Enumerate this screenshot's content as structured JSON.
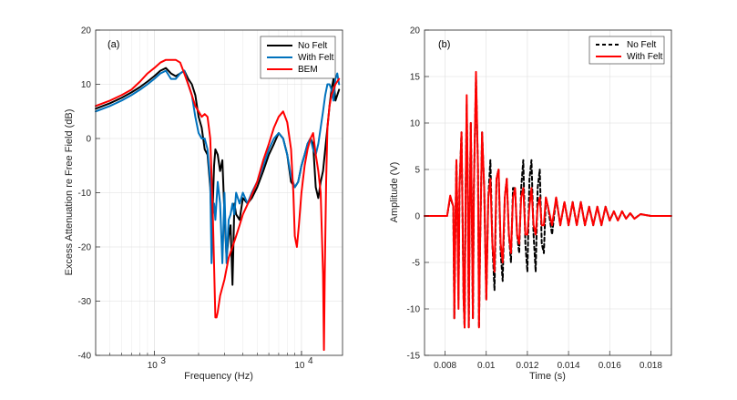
{
  "chart_data": [
    {
      "type": "line",
      "panel_label": "(a)",
      "xscale": "log",
      "xlabel": "Frequency (Hz)",
      "ylabel": "Excess Attenuation re Free Field (dB)",
      "xlim": [
        400,
        19000
      ],
      "ylim": [
        -40,
        20
      ],
      "grid": true,
      "legend_position": "top-right",
      "xticks": [
        {
          "value": 1000,
          "base": "10",
          "exp": "3"
        },
        {
          "value": 10000,
          "base": "10",
          "exp": "4"
        }
      ],
      "yticks": [
        -40,
        -30,
        -20,
        -10,
        0,
        10,
        20
      ],
      "yticks_labels": [
        "-40",
        "-30",
        "-20",
        "-10",
        "0",
        "10",
        "20"
      ],
      "series": [
        {
          "name": "No Felt",
          "color": "#000000",
          "dash": "solid",
          "x": [
            400,
            500,
            600,
            700,
            800,
            900,
            1000,
            1100,
            1200,
            1300,
            1400,
            1500,
            1600,
            1700,
            1800,
            1900,
            2000,
            2100,
            2200,
            2300,
            2400,
            2450,
            2500,
            2550,
            2600,
            2700,
            2800,
            2900,
            3000,
            3100,
            3200,
            3300,
            3400,
            3500,
            3600,
            3800,
            4000,
            4300,
            4600,
            5000,
            5500,
            6000,
            6500,
            7000,
            7500,
            8000,
            8500,
            9000,
            9500,
            10000,
            10500,
            11000,
            11500,
            12000,
            12500,
            13000,
            13500,
            14000,
            14500,
            15000,
            15500,
            16000,
            16500,
            17000,
            17500,
            18000
          ],
          "y": [
            5.5,
            6.5,
            7.5,
            8.5,
            9.5,
            10.5,
            11.5,
            12.5,
            13,
            12,
            11.5,
            12,
            12.5,
            11,
            10,
            8,
            4,
            2,
            -2,
            -3,
            -9,
            -16,
            -12,
            -5,
            -2,
            -3,
            -6,
            -4,
            -14,
            -22,
            -18,
            -16,
            -27,
            -12,
            -14,
            -15,
            -11,
            -12,
            -11,
            -9,
            -6,
            -3,
            -1,
            1,
            0,
            -3,
            -8,
            -9,
            -8,
            -5,
            -3,
            -1,
            0,
            -1,
            -9,
            -11,
            -8,
            -6,
            -2,
            2,
            6,
            9,
            11,
            7,
            8,
            9
          ]
        },
        {
          "name": "With Felt",
          "color": "#0072bd",
          "dash": "solid",
          "x": [
            400,
            500,
            600,
            700,
            800,
            900,
            1000,
            1100,
            1200,
            1300,
            1400,
            1500,
            1600,
            1700,
            1800,
            1900,
            2000,
            2100,
            2200,
            2300,
            2400,
            2450,
            2500,
            2550,
            2600,
            2700,
            2800,
            2900,
            3000,
            3100,
            3200,
            3300,
            3400,
            3500,
            3600,
            3800,
            4000,
            4300,
            4600,
            5000,
            5500,
            6000,
            6500,
            7000,
            7500,
            8000,
            8500,
            9000,
            9500,
            10000,
            10500,
            11000,
            11500,
            12000,
            12500,
            13000,
            13500,
            14000,
            14500,
            15000,
            15500,
            16000,
            16500,
            17000,
            17500,
            18000
          ],
          "y": [
            5,
            6,
            7,
            8,
            9,
            10,
            11,
            12,
            12.5,
            11,
            11,
            12,
            12.5,
            10,
            8,
            4,
            1,
            0,
            0,
            -2,
            -8,
            -23,
            -14,
            -12,
            -15,
            -8,
            -12,
            -23,
            -10,
            -23,
            -15,
            -14,
            -12,
            -14,
            -10,
            -12,
            -10,
            -12,
            -10,
            -8,
            -5,
            -2,
            0,
            1,
            0,
            -3,
            -7,
            -9,
            -8,
            -5,
            -3,
            -1,
            0,
            -2,
            -3,
            -1,
            2,
            5,
            8,
            10,
            10,
            9,
            7,
            11,
            12,
            10
          ]
        },
        {
          "name": "BEM",
          "color": "#ff0000",
          "dash": "solid",
          "x": [
            400,
            500,
            600,
            700,
            800,
            900,
            1000,
            1100,
            1200,
            1300,
            1400,
            1500,
            1600,
            1700,
            1800,
            1900,
            2000,
            2100,
            2200,
            2300,
            2400,
            2500,
            2600,
            2650,
            2700,
            2800,
            3000,
            3200,
            3400,
            3600,
            3800,
            4000,
            4500,
            5000,
            5500,
            6000,
            6500,
            7000,
            7500,
            8000,
            8500,
            8800,
            9000,
            9300,
            9600,
            10000,
            10500,
            11000,
            11500,
            12000,
            12500,
            13000,
            13500,
            14000,
            14200,
            14400,
            14700,
            15000,
            15500,
            16000,
            16500,
            17000,
            18000
          ],
          "y": [
            6,
            7,
            8,
            9,
            10.5,
            12,
            13,
            14,
            14.5,
            14.5,
            14.5,
            14,
            12,
            10,
            8,
            6,
            5,
            4,
            4.5,
            4,
            0,
            -14,
            -33,
            -33,
            -32,
            -29,
            -26,
            -22,
            -20,
            -18,
            -16,
            -14,
            -11,
            -8,
            -4,
            -1,
            2,
            4,
            5,
            3,
            -2,
            -10,
            -18,
            -20,
            -16,
            -10,
            -5,
            -2,
            0,
            1,
            -3,
            -6,
            -10,
            -25,
            -39,
            -25,
            -8,
            2,
            6,
            8,
            9,
            10,
            11
          ]
        }
      ]
    },
    {
      "type": "line",
      "panel_label": "(b)",
      "xlabel": "Time (s)",
      "ylabel": "Amplitude (V)",
      "xlim": [
        0.007,
        0.019
      ],
      "ylim": [
        -15,
        20
      ],
      "grid": true,
      "legend_position": "top-right",
      "xticks": [
        0.008,
        0.01,
        0.012,
        0.014,
        0.016,
        0.018
      ],
      "xticks_labels": [
        "0.008",
        "0.01",
        "0.012",
        "0.014",
        "0.016",
        "0.018"
      ],
      "yticks": [
        -15,
        -10,
        -5,
        0,
        5,
        10,
        15,
        20
      ],
      "yticks_labels": [
        "-15",
        "-10",
        "-5",
        "0",
        "5",
        "10",
        "15",
        "20"
      ],
      "series": [
        {
          "name": "No Felt",
          "color": "#000000",
          "dash": "dashed",
          "x": [
            0.007,
            0.0081,
            0.00825,
            0.0084,
            0.00845,
            0.0085,
            0.00855,
            0.0086,
            0.00865,
            0.0087,
            0.0088,
            0.0089,
            0.00895,
            0.009,
            0.00905,
            0.0091,
            0.00915,
            0.0092,
            0.00925,
            0.0093,
            0.00935,
            0.0094,
            0.0095,
            0.0096,
            0.00965,
            0.0097,
            0.0098,
            0.0099,
            0.01,
            0.0101,
            0.0102,
            0.0103,
            0.0104,
            0.0105,
            0.0106,
            0.0107,
            0.0108,
            0.0109,
            0.011,
            0.0111,
            0.0112,
            0.0113,
            0.0114,
            0.0115,
            0.0116,
            0.0117,
            0.0118,
            0.0119,
            0.012,
            0.0121,
            0.0122,
            0.0123,
            0.0124,
            0.0125,
            0.0126,
            0.0127,
            0.0128,
            0.0129,
            0.013,
            0.0132,
            0.0134,
            0.0136,
            0.0138,
            0.014,
            0.0142,
            0.0144,
            0.0146,
            0.0148,
            0.015,
            0.0152,
            0.0154,
            0.0156,
            0.0158,
            0.016,
            0.0162,
            0.0164,
            0.0166,
            0.0168,
            0.017,
            0.0172,
            0.0175,
            0.018,
            0.019
          ],
          "y": [
            0,
            0,
            2,
            1,
            -11,
            -1,
            6,
            0,
            -9,
            3,
            9,
            -9,
            -12,
            3,
            12,
            4,
            -12,
            1,
            10,
            1,
            -11,
            3,
            15,
            5,
            -12,
            -3,
            9,
            3,
            -9,
            2,
            6,
            -3,
            -8,
            4,
            5,
            -4,
            -7,
            2,
            4,
            -2,
            -5,
            3,
            3,
            -2,
            -4,
            3,
            6,
            -3,
            -6,
            4,
            6,
            -2,
            -6,
            3,
            5,
            -3,
            -4,
            2,
            1,
            -2,
            2,
            -1,
            1.5,
            -1,
            1.5,
            -1,
            1.5,
            -1,
            1,
            -1,
            1,
            -1,
            1,
            -0.5,
            0.5,
            -0.5,
            0.5,
            -0.3,
            0.3,
            -0.3,
            0.2,
            0,
            0
          ]
        },
        {
          "name": "With Felt",
          "color": "#ff0000",
          "dash": "solid",
          "x": [
            0.007,
            0.0081,
            0.00825,
            0.0084,
            0.00845,
            0.0085,
            0.00855,
            0.0086,
            0.00865,
            0.0087,
            0.0088,
            0.0089,
            0.00895,
            0.009,
            0.00905,
            0.0091,
            0.00915,
            0.0092,
            0.00925,
            0.0093,
            0.00935,
            0.0094,
            0.0095,
            0.0096,
            0.00965,
            0.0097,
            0.0098,
            0.0099,
            0.01,
            0.0101,
            0.0102,
            0.0103,
            0.0104,
            0.0105,
            0.0106,
            0.0107,
            0.0108,
            0.0109,
            0.011,
            0.0111,
            0.0112,
            0.0113,
            0.0114,
            0.0115,
            0.0116,
            0.0117,
            0.0118,
            0.0119,
            0.012,
            0.0121,
            0.0122,
            0.0123,
            0.0124,
            0.0125,
            0.0126,
            0.0127,
            0.0128,
            0.0129,
            0.013,
            0.0132,
            0.0134,
            0.0136,
            0.0138,
            0.014,
            0.0142,
            0.0144,
            0.0146,
            0.0148,
            0.015,
            0.0152,
            0.0154,
            0.0156,
            0.0158,
            0.016,
            0.0162,
            0.0164,
            0.0166,
            0.0168,
            0.017,
            0.0172,
            0.0175,
            0.018,
            0.019
          ],
          "y": [
            0,
            0,
            2.2,
            1,
            -11,
            -1,
            6,
            0,
            -10,
            3,
            9,
            -9,
            -12,
            3,
            13,
            4,
            -12,
            1,
            10,
            1,
            -11,
            3,
            15.5,
            5,
            -12,
            -3,
            9,
            3,
            -9,
            2,
            4,
            -3,
            -6,
            4,
            5,
            -3,
            -5,
            2,
            4,
            -2,
            -4,
            2,
            3,
            -2,
            -3,
            2,
            3,
            -2,
            -2,
            1,
            3,
            -1,
            -2,
            1,
            2,
            -1,
            -1,
            2,
            1,
            -1,
            2,
            -1,
            1.5,
            -1,
            1.5,
            -1,
            1.5,
            -1,
            1,
            -1,
            1,
            -1,
            1,
            -0.5,
            0.5,
            -0.5,
            0.5,
            -0.3,
            0.3,
            -0.3,
            0.2,
            0,
            0
          ]
        }
      ]
    }
  ]
}
